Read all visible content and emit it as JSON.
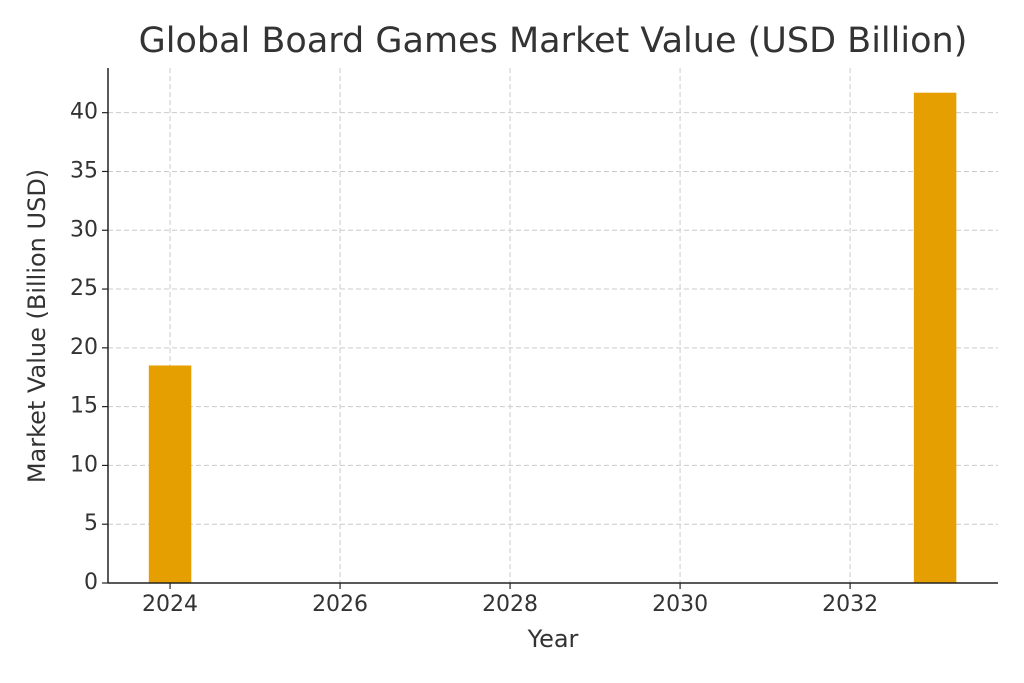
{
  "chart_data": {
    "type": "bar",
    "title": "Global Board Games Market Value (USD Billion)",
    "x_label": "Year",
    "y_label": "Market Value (Billion USD)",
    "x": [
      2024,
      2033
    ],
    "values": [
      18.5,
      41.7
    ],
    "color": "#e69f00",
    "xlim": [
      2023.27,
      2033.74
    ],
    "xticks": [
      2024,
      2026,
      2028,
      2030,
      2032
    ],
    "ylim": [
      0,
      43.8
    ],
    "yticks": [
      0,
      5,
      10,
      15,
      20,
      25,
      30,
      35,
      40
    ],
    "grid": true
  }
}
